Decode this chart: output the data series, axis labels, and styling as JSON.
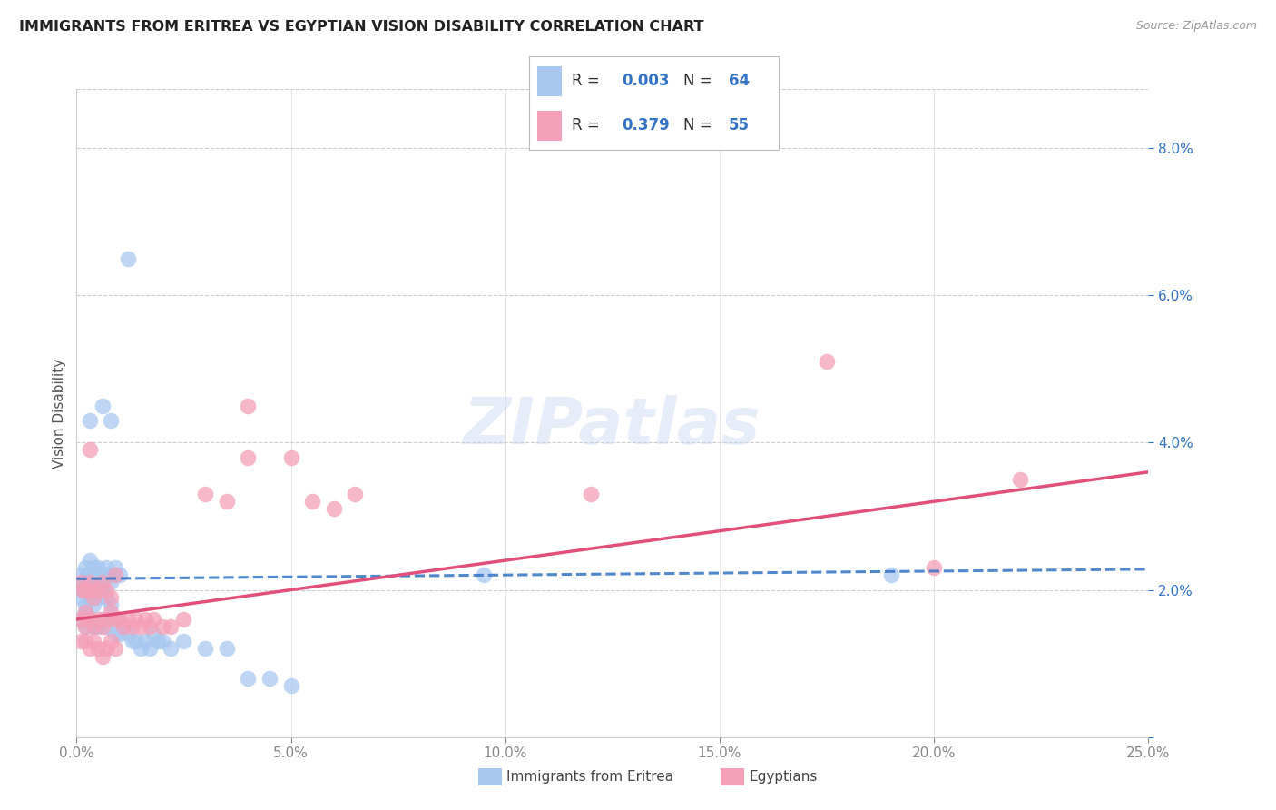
{
  "title": "IMMIGRANTS FROM ERITREA VS EGYPTIAN VISION DISABILITY CORRELATION CHART",
  "source": "Source: ZipAtlas.com",
  "ylabel": "Vision Disability",
  "xlim": [
    0.0,
    0.25
  ],
  "ylim": [
    0.0,
    0.088
  ],
  "blue_color": "#a8c8f0",
  "pink_color": "#f4a0b8",
  "blue_line_color": "#3373c4",
  "pink_line_color": "#e0507a",
  "blue_line_dash_color": "#a0c0e8",
  "watermark": "ZIPatlas",
  "legend1_label": "Immigrants from Eritrea",
  "legend2_label": "Egyptians",
  "blue_x": [
    0.001,
    0.0015,
    0.002,
    0.0025,
    0.003,
    0.003,
    0.0035,
    0.004,
    0.004,
    0.005,
    0.005,
    0.006,
    0.006,
    0.007,
    0.007,
    0.008,
    0.008,
    0.009,
    0.009,
    0.01,
    0.001,
    0.0015,
    0.002,
    0.003,
    0.003,
    0.004,
    0.005,
    0.006,
    0.007,
    0.008,
    0.001,
    0.002,
    0.002,
    0.003,
    0.004,
    0.005,
    0.006,
    0.007,
    0.008,
    0.009,
    0.01,
    0.011,
    0.012,
    0.013,
    0.014,
    0.015,
    0.016,
    0.017,
    0.018,
    0.019,
    0.02,
    0.022,
    0.025,
    0.03,
    0.035,
    0.04,
    0.045,
    0.05,
    0.19,
    0.095,
    0.003,
    0.006,
    0.012,
    0.008
  ],
  "blue_y": [
    0.022,
    0.021,
    0.023,
    0.022,
    0.022,
    0.024,
    0.021,
    0.023,
    0.021,
    0.022,
    0.023,
    0.021,
    0.022,
    0.022,
    0.023,
    0.022,
    0.021,
    0.022,
    0.023,
    0.022,
    0.019,
    0.02,
    0.018,
    0.02,
    0.019,
    0.018,
    0.019,
    0.02,
    0.019,
    0.018,
    0.016,
    0.017,
    0.015,
    0.016,
    0.015,
    0.015,
    0.016,
    0.015,
    0.016,
    0.014,
    0.014,
    0.015,
    0.014,
    0.013,
    0.013,
    0.012,
    0.013,
    0.012,
    0.014,
    0.013,
    0.013,
    0.012,
    0.013,
    0.012,
    0.012,
    0.008,
    0.008,
    0.007,
    0.022,
    0.022,
    0.043,
    0.045,
    0.065,
    0.043
  ],
  "pink_x": [
    0.001,
    0.0015,
    0.002,
    0.003,
    0.003,
    0.004,
    0.005,
    0.006,
    0.007,
    0.008,
    0.001,
    0.002,
    0.002,
    0.003,
    0.004,
    0.005,
    0.006,
    0.007,
    0.008,
    0.009,
    0.01,
    0.011,
    0.012,
    0.013,
    0.014,
    0.015,
    0.016,
    0.017,
    0.018,
    0.02,
    0.022,
    0.025,
    0.03,
    0.035,
    0.04,
    0.05,
    0.055,
    0.06,
    0.065,
    0.001,
    0.002,
    0.003,
    0.004,
    0.005,
    0.006,
    0.007,
    0.008,
    0.009,
    0.12,
    0.175,
    0.2,
    0.22,
    0.003,
    0.009,
    0.04
  ],
  "pink_y": [
    0.021,
    0.02,
    0.02,
    0.02,
    0.021,
    0.019,
    0.02,
    0.021,
    0.02,
    0.019,
    0.016,
    0.017,
    0.015,
    0.016,
    0.015,
    0.016,
    0.015,
    0.016,
    0.017,
    0.016,
    0.016,
    0.015,
    0.016,
    0.015,
    0.016,
    0.015,
    0.016,
    0.015,
    0.016,
    0.015,
    0.015,
    0.016,
    0.033,
    0.032,
    0.038,
    0.038,
    0.032,
    0.031,
    0.033,
    0.013,
    0.013,
    0.012,
    0.013,
    0.012,
    0.011,
    0.012,
    0.013,
    0.012,
    0.033,
    0.051,
    0.023,
    0.035,
    0.039,
    0.022,
    0.045
  ],
  "blue_trendline_x": [
    0.0,
    0.25
  ],
  "blue_trendline_y": [
    0.0215,
    0.0228
  ],
  "pink_trendline_x": [
    0.0,
    0.25
  ],
  "pink_trendline_y": [
    0.016,
    0.036
  ]
}
